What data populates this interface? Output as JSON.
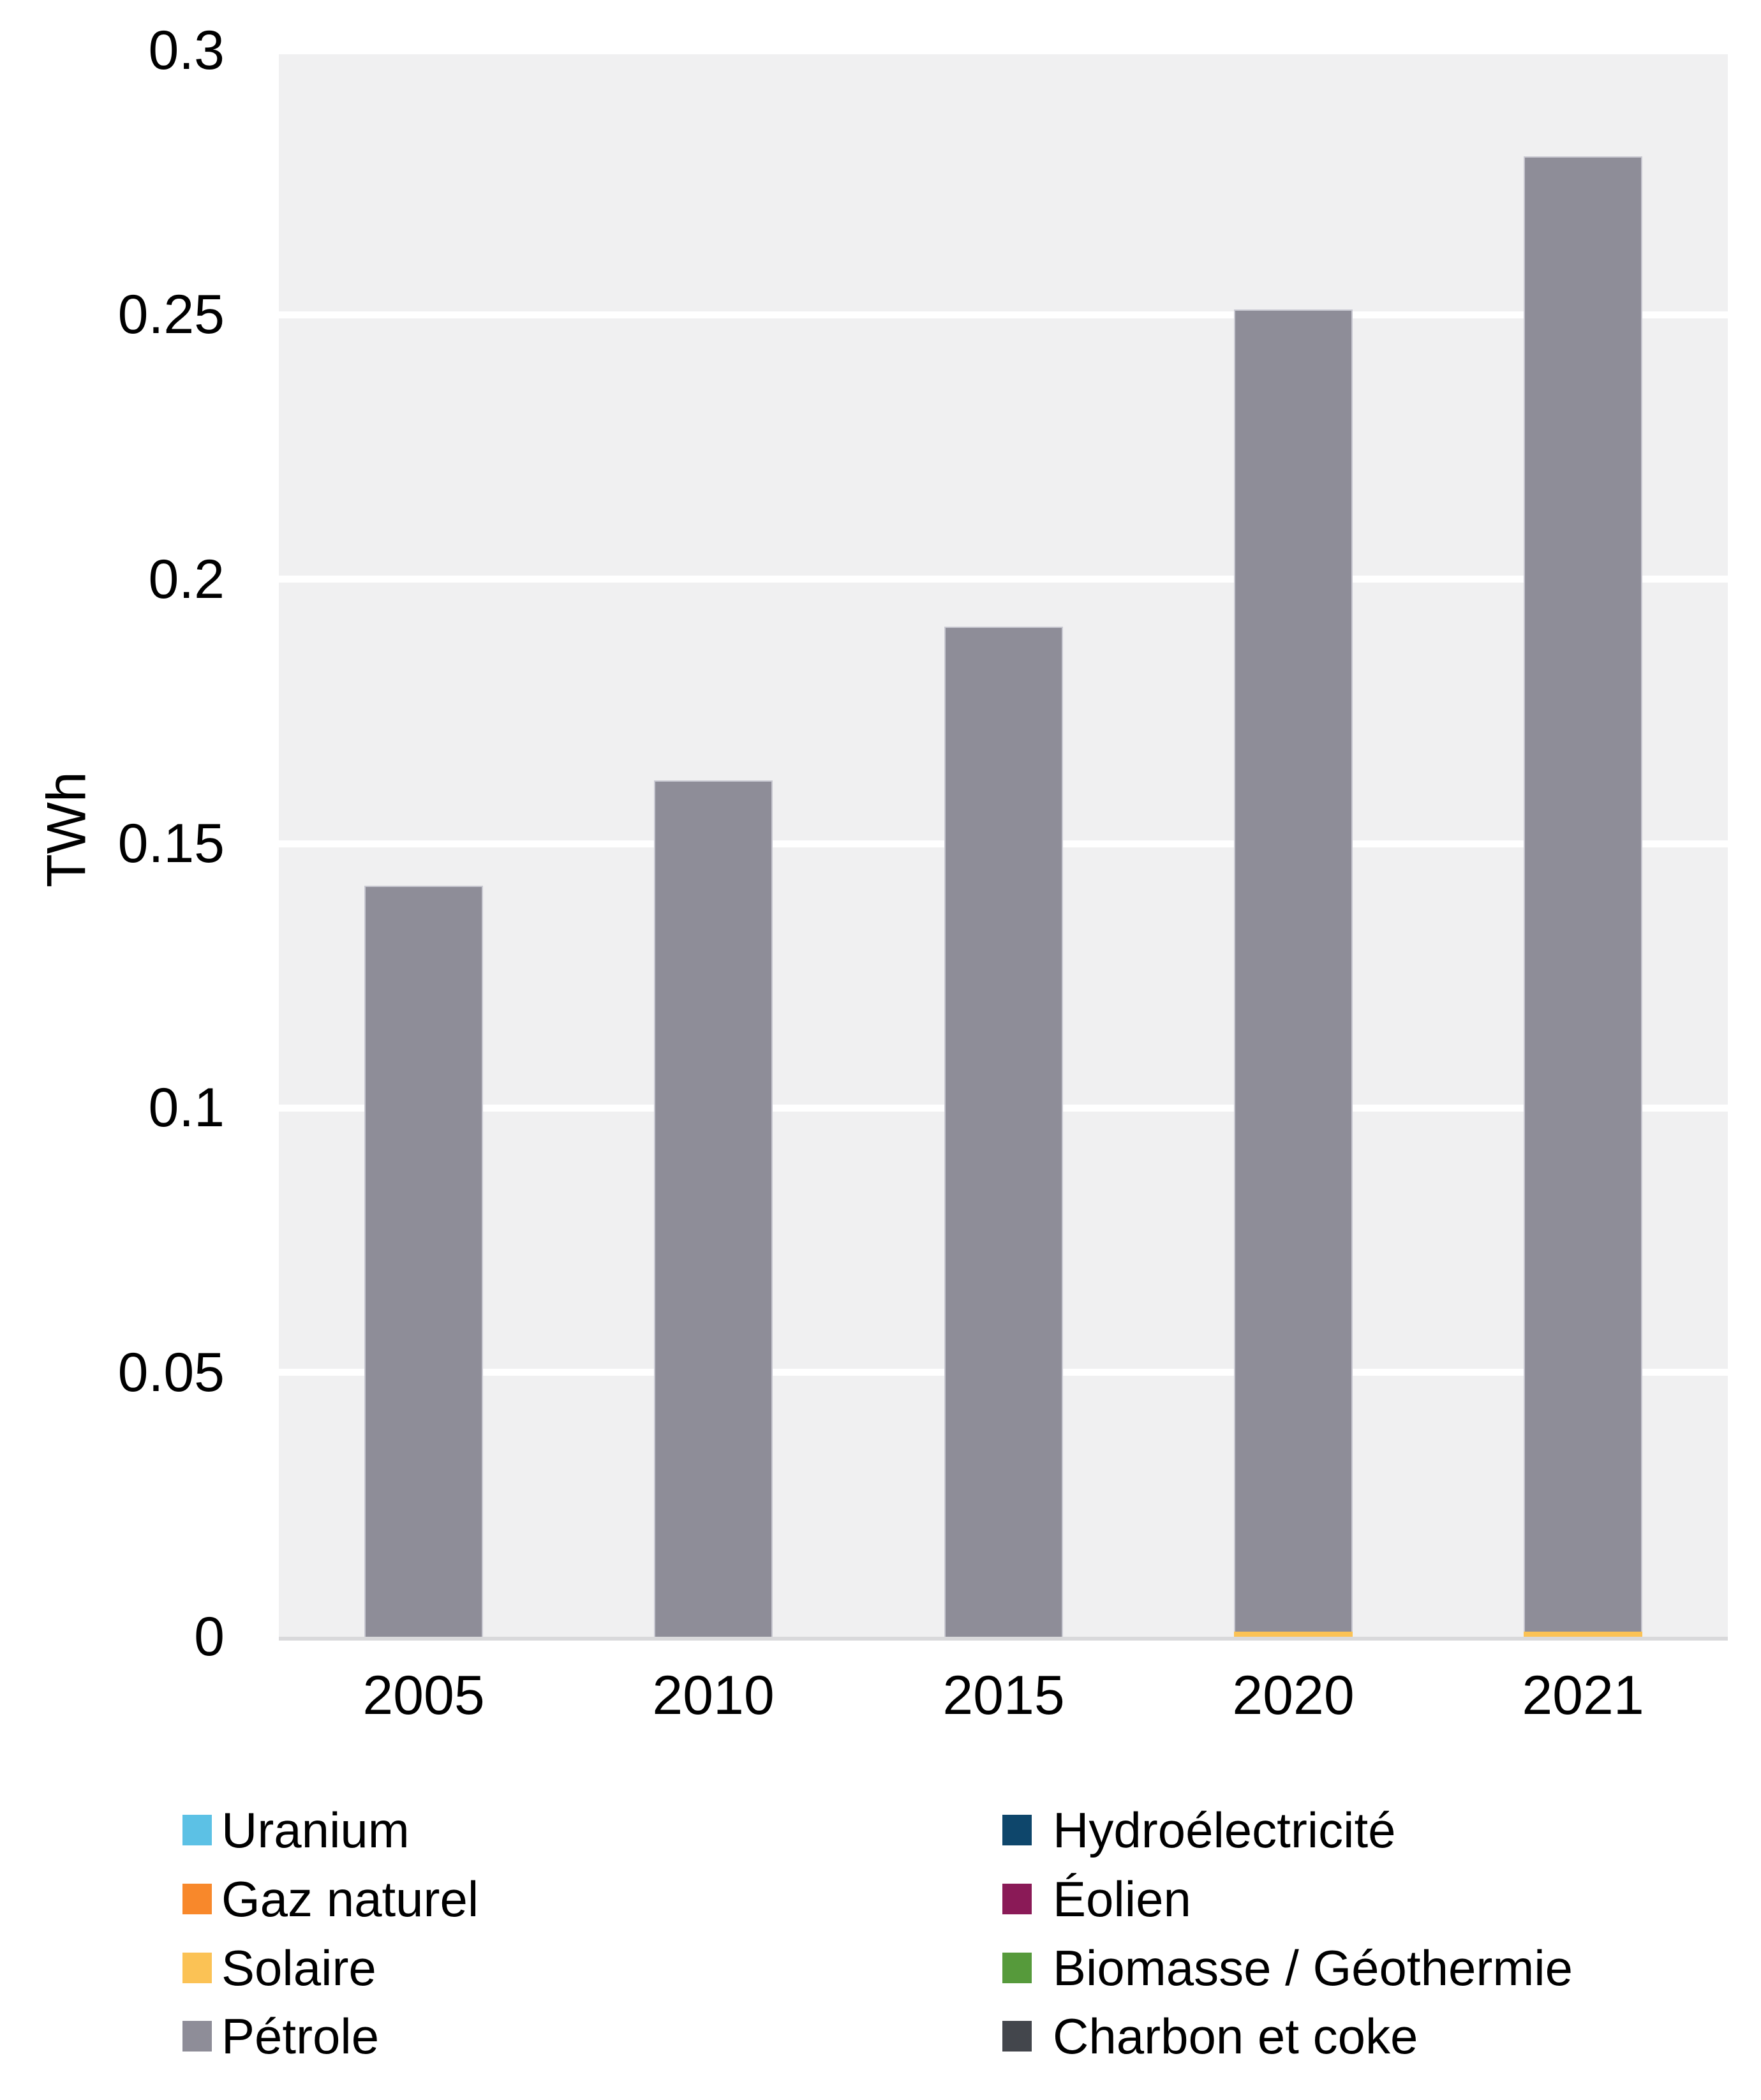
{
  "chart_data": {
    "type": "bar",
    "stacked": true,
    "title": "",
    "xlabel": "",
    "ylabel": "TWh",
    "ylim": [
      0,
      0.3
    ],
    "yticks": [
      0,
      0.05,
      0.1,
      0.15,
      0.2,
      0.25,
      0.3
    ],
    "ytick_labels": [
      "0",
      "0.05",
      "0.1",
      "0.15",
      "0.2",
      "0.25",
      "0.3"
    ],
    "grid": "horizontal-white-lines",
    "plot_bg": "#F0F0F1",
    "axis_line_color": "#D9D9DB",
    "gridline_color": "#FFFFFF",
    "legend_position": "bottom-two-columns",
    "categories": [
      "2005",
      "2010",
      "2015",
      "2020",
      "2021"
    ],
    "series": [
      {
        "name": "Uranium",
        "color": "#5CC1E5",
        "values": [
          0,
          0,
          0,
          0,
          0
        ]
      },
      {
        "name": "Hydroélectricité",
        "color": "#0E466B",
        "values": [
          0,
          0,
          0,
          0,
          0
        ]
      },
      {
        "name": "Gaz naturel",
        "color": "#F8882B",
        "values": [
          0,
          0,
          0,
          0,
          0
        ]
      },
      {
        "name": "Éolien",
        "color": "#8A1A57",
        "values": [
          0,
          0,
          0,
          0,
          0
        ]
      },
      {
        "name": "Solaire",
        "color": "#FBC255",
        "values": [
          0,
          0,
          0,
          0.001,
          0.001
        ]
      },
      {
        "name": "Biomasse / Géothermie",
        "color": "#569A3B",
        "values": [
          0,
          0,
          0,
          0,
          0
        ]
      },
      {
        "name": "Pétrole",
        "color": "#8E8D98",
        "values": [
          0.142,
          0.162,
          0.191,
          0.25,
          0.279
        ]
      },
      {
        "name": "Charbon et coke",
        "color": "#43464C",
        "values": [
          0,
          0,
          0,
          0,
          0
        ]
      }
    ]
  },
  "legend": {
    "columns": [
      {
        "items": [
          {
            "label": "Uranium",
            "color": "#5CC1E5"
          },
          {
            "label": "Gaz naturel",
            "color": "#F8882B"
          },
          {
            "label": "Solaire",
            "color": "#FBC255"
          },
          {
            "label": "Pétrole",
            "color": "#8E8D98"
          }
        ]
      },
      {
        "items": [
          {
            "label": "Hydroélectricité",
            "color": "#0E466B"
          },
          {
            "label": "Éolien",
            "color": "#8A1A57"
          },
          {
            "label": "Biomasse / Géothermie",
            "color": "#569A3B"
          },
          {
            "label": "Charbon et coke",
            "color": "#43464C"
          }
        ]
      }
    ]
  }
}
